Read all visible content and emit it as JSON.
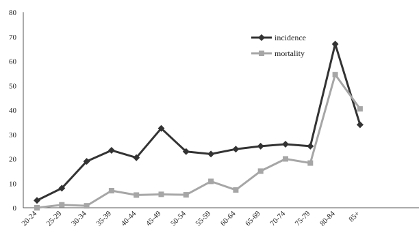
{
  "chart_data": {
    "type": "line",
    "x": [
      "20-24",
      "25-29",
      "30-34",
      "35-39",
      "40-44",
      "45-49",
      "50-54",
      "55-59",
      "60-64",
      "65-69",
      "70-74",
      "75-79",
      "80-84",
      "85+"
    ],
    "series": [
      {
        "name": "incidence",
        "values": [
          3,
          8,
          19,
          23.5,
          20.5,
          32.5,
          23,
          22,
          24,
          25.2,
          26,
          25.2,
          67,
          34
        ],
        "color": "#333333",
        "marker": "diamond"
      },
      {
        "name": "mortality",
        "values": [
          0,
          1.2,
          0.8,
          7,
          5.2,
          5.5,
          5.3,
          10.8,
          7.3,
          15,
          20,
          18.3,
          54.5,
          40.5
        ],
        "color": "#a6a6a6",
        "marker": "square"
      }
    ],
    "ylim": [
      0,
      80
    ],
    "yticks": [
      0,
      10,
      20,
      30,
      40,
      50,
      60,
      70,
      80
    ],
    "grid": false,
    "legend_position": "top-right",
    "title": "",
    "xlabel": "",
    "ylabel": ""
  }
}
